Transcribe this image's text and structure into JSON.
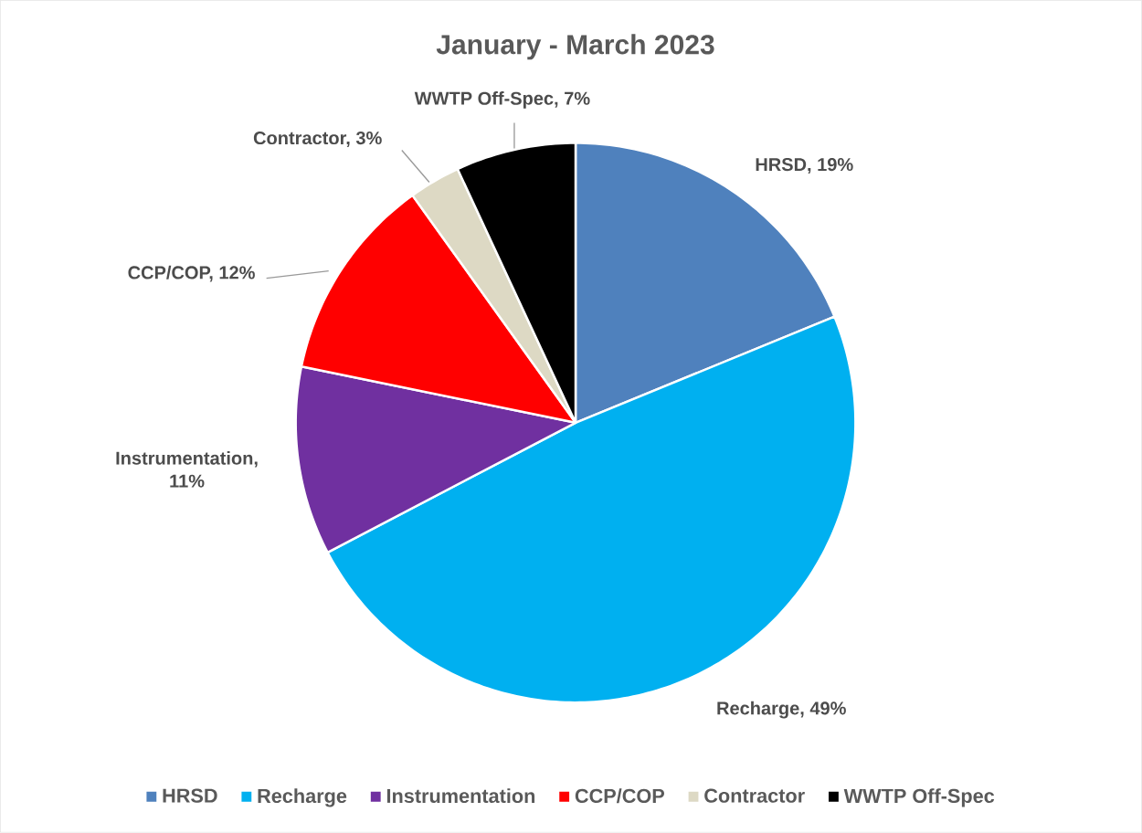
{
  "chart_data": {
    "type": "pie",
    "title": "January - March  2023",
    "categories": [
      "HRSD",
      "Recharge",
      "Instrumentation",
      "CCP/COP",
      "Contractor",
      "WWTP Off-Spec"
    ],
    "values": [
      19,
      49,
      11,
      12,
      3,
      7
    ],
    "colors": [
      "#4f81bd",
      "#00b0f0",
      "#7030a0",
      "#ff0000",
      "#ddd9c4",
      "#000000"
    ],
    "value_labels": [
      "HRSD, 19%",
      "Recharge, 49%",
      "Instrumentation, 11%",
      "CCP/COP, 12%",
      "Contractor, 3%",
      "WWTP Off-Spec, 7%"
    ],
    "legend": "bottom"
  }
}
